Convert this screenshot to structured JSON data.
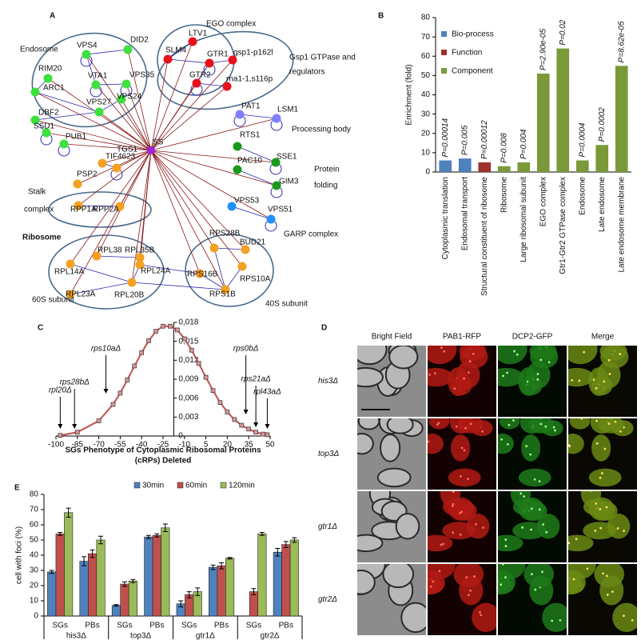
{
  "panel_labels": [
    "A",
    "B",
    "C",
    "D",
    "E"
  ],
  "network": {
    "groups": [
      [
        "Endosome"
      ],
      [
        "EGO complex"
      ],
      [
        "Gsp1 GTPase and",
        "regulators"
      ],
      [
        "Processing body"
      ],
      [
        "Protein",
        "folding"
      ],
      [
        "Stalk",
        "complex"
      ],
      [
        "Ribosome"
      ],
      [
        "60S subunit"
      ],
      [
        "40S subunit"
      ],
      [
        "GARP complex"
      ]
    ],
    "center": {
      "label": "SS",
      "color": "#a020e0"
    },
    "nodes": [
      {
        "label": "DID2",
        "color": "#3de03d"
      },
      {
        "label": "VPS4",
        "color": "#3de03d"
      },
      {
        "label": "RIM20",
        "color": "#3de03d"
      },
      {
        "label": "VTA1",
        "color": "#3de03d"
      },
      {
        "label": "VPS35",
        "color": "#3de03d"
      },
      {
        "label": "ARC1",
        "color": "#3de03d"
      },
      {
        "label": "VPS24",
        "color": "#3de03d"
      },
      {
        "label": "VPS27",
        "color": "#3de03d"
      },
      {
        "label": "DBF2",
        "color": "#3de03d"
      },
      {
        "label": "SSD1",
        "color": "#3de03d"
      },
      {
        "label": "PUB1",
        "color": "#3de03d"
      },
      {
        "label": "LTV1",
        "color": "#e8101a"
      },
      {
        "label": "SLM4",
        "color": "#e8101a"
      },
      {
        "label": "GTR1",
        "color": "#e8101a"
      },
      {
        "label": "gsp1-p162l",
        "color": "#e8101a"
      },
      {
        "label": "GTR2",
        "color": "#e8101a"
      },
      {
        "label": "rna1-1,s116p",
        "color": "#e8101a"
      },
      {
        "label": "PAT1",
        "color": "#7f7fff"
      },
      {
        "label": "LSM1",
        "color": "#7f7fff"
      },
      {
        "label": "RTS1",
        "color": "#1a9a1a"
      },
      {
        "label": "SSE1",
        "color": "#1a9a1a"
      },
      {
        "label": "PAC10",
        "color": "#1a9a1a"
      },
      {
        "label": "GIM3",
        "color": "#1a9a1a"
      },
      {
        "label": "VPS53",
        "color": "#1e90ff"
      },
      {
        "label": "VPS51",
        "color": "#1e90ff"
      },
      {
        "label": "TIF4623",
        "color": "#f5a020"
      },
      {
        "label": "TGS1",
        "color": "#f5a020"
      },
      {
        "label": "PSP2",
        "color": "#f5a020"
      },
      {
        "label": "RPP1A",
        "color": "#f5a020"
      },
      {
        "label": "RPP2A",
        "color": "#f5a020"
      },
      {
        "label": "RPL38",
        "color": "#f5a020"
      },
      {
        "label": "RPL35B",
        "color": "#f5a020"
      },
      {
        "label": "RPL14A",
        "color": "#f5a020"
      },
      {
        "label": "RPL24A",
        "color": "#f5a020"
      },
      {
        "label": "RPL23A",
        "color": "#f5a020"
      },
      {
        "label": "RPL20B",
        "color": "#f5a020"
      },
      {
        "label": "RPS28B",
        "color": "#f5a020"
      },
      {
        "label": "BUD21",
        "color": "#f5a020"
      },
      {
        "label": "RPS16B",
        "color": "#f5a020"
      },
      {
        "label": "RPS10A",
        "color": "#f5a020"
      },
      {
        "label": "RPS1B",
        "color": "#f5a020"
      }
    ]
  },
  "chart_data": [
    {
      "type": "bar",
      "y_label": "Enrichment (fold)",
      "categories": [
        "Cytoplasmic translation",
        "Endosomal transport",
        "Structural constituent of ribosome",
        "Ribosome",
        "Large ribosomal subunit",
        "EGO complex",
        "Gtr1-Gtr2 GTPase complex",
        "Endosome",
        "Late endosome",
        "Late endosome membrane"
      ],
      "values": [
        6,
        7,
        5,
        3,
        5,
        51,
        64,
        6,
        14,
        55
      ],
      "annotations": [
        "P=0.00014",
        "P=0.005",
        "P=0.00012",
        "P=0.008",
        "P=0.004",
        "P=2.90e-05",
        "P=0.02",
        "P=0.0004",
        "P=0.0002",
        "P=8.62e-05"
      ],
      "colors": [
        "#4f81bd",
        "#4f81bd",
        "#a0322d",
        "#7a9a3a",
        "#7a9a3a",
        "#7a9a3a",
        "#7a9a3a",
        "#7a9a3a",
        "#7a9a3a",
        "#7a9a3a"
      ],
      "legend": [
        {
          "name": "Bio-process",
          "color": "#4f81bd"
        },
        {
          "name": "Function",
          "color": "#a0322d"
        },
        {
          "name": "Component",
          "color": "#7a9a3a"
        }
      ],
      "ylim": [
        0,
        80
      ],
      "yticks": [
        0,
        10,
        20,
        30,
        40,
        50,
        60,
        70,
        80
      ]
    },
    {
      "type": "line",
      "x_label": [
        "SGs Phenotype of Cytoplasmic Ribosomal Proteins",
        "(cRPs) Deleted"
      ],
      "x": [
        -97,
        -85,
        -70,
        -60,
        -55,
        -50,
        -45,
        -40,
        -35,
        -30,
        -25,
        -20,
        -15,
        -10,
        -5,
        0,
        5,
        10,
        15,
        20,
        25,
        30,
        35,
        40,
        45,
        48
      ],
      "values": [
        0.0001,
        0.0006,
        0.0024,
        0.005,
        0.0068,
        0.0089,
        0.0111,
        0.0132,
        0.0151,
        0.0166,
        0.0174,
        0.0174,
        0.0168,
        0.0154,
        0.0136,
        0.0115,
        0.0093,
        0.0072,
        0.0053,
        0.0038,
        0.0026,
        0.0017,
        0.0011,
        0.0006,
        0.0003,
        0.0002
      ],
      "color": "#c0504d",
      "marker_color": "#d99694",
      "xlim": [
        -100,
        50
      ],
      "xticks": [
        -100,
        -85,
        -70,
        -55,
        -40,
        -25,
        -10,
        5,
        20,
        35,
        50
      ],
      "ylim": [
        0,
        0.018
      ],
      "yticks": [
        0,
        {
          "value": 0.003,
          "label": "0,003"
        },
        {
          "value": 0.006,
          "label": "0,006"
        },
        {
          "value": 0.009,
          "label": "0,009"
        },
        {
          "value": 0.012,
          "label": "0,012"
        },
        {
          "value": 0.015,
          "label": "0,015"
        },
        {
          "value": 0.018,
          "label": "0,018"
        }
      ],
      "yaxis_x": -17.5,
      "annotations": [
        {
          "text": "rpl20Δ",
          "x": -97
        },
        {
          "text": "rps28bΔ",
          "x": -87
        },
        {
          "text": "rps10aΔ",
          "x": -65
        },
        {
          "text": "rps0bΔ",
          "x": 33
        },
        {
          "text": "rps21aΔ",
          "x": 40
        },
        {
          "text": "rpl43aΔ",
          "x": 48
        }
      ]
    },
    {
      "type": "grouped_bar",
      "y_label": "cell with foci (%)",
      "categories": [
        "SGs",
        "PBs",
        "SGs",
        "PBs",
        "SGs",
        "PBs",
        "SGs",
        "PBs"
      ],
      "groups": [
        "his3Δ",
        "top3Δ",
        "gtr1Δ",
        "gtr2Δ"
      ],
      "series": [
        {
          "name": "30min",
          "color": "#4f81bd",
          "values": [
            29,
            36,
            7,
            52,
            8,
            32,
            0,
            42
          ],
          "errors": [
            1,
            3,
            0.5,
            1,
            2,
            1.5,
            0,
            2.5
          ]
        },
        {
          "name": "60min",
          "color": "#c0504d",
          "values": [
            54,
            41,
            21,
            53,
            14,
            33,
            16,
            47
          ],
          "errors": [
            1,
            2.5,
            1.5,
            1,
            2,
            2,
            2,
            2
          ]
        },
        {
          "name": "120min",
          "color": "#9bbb59",
          "values": [
            68,
            50,
            23,
            58,
            16,
            38,
            54,
            50
          ],
          "errors": [
            3,
            2.5,
            1,
            2.5,
            2.5,
            0.5,
            1,
            1.5
          ]
        }
      ],
      "ylim": [
        0,
        80
      ],
      "yticks": [
        0,
        10,
        20,
        30,
        40,
        50,
        60,
        70,
        80
      ]
    }
  ],
  "microscopy": {
    "columns": [
      "Bright Field",
      "PAB1-RFP",
      "DCP2-GFP",
      "Merge"
    ],
    "rows": [
      "his3Δ",
      "top3Δ",
      "gtr1Δ",
      "gtr2Δ"
    ]
  }
}
